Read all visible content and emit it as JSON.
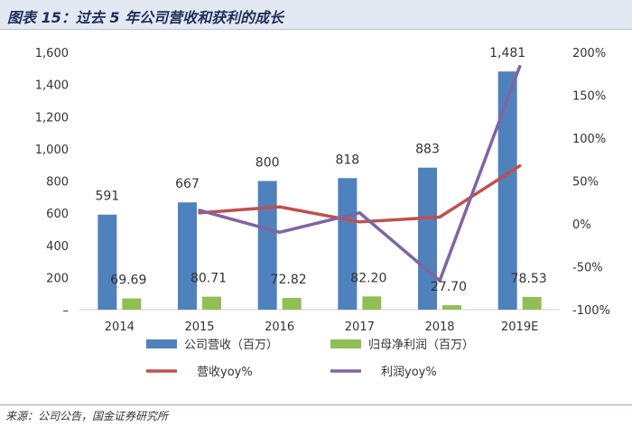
{
  "header": {
    "title": "图表 15：过去 5 年公司营收和获利的成长"
  },
  "source": {
    "text": "来源：公司公告，国金证券研究所"
  },
  "colors": {
    "revenue_bar": "#4f81bd",
    "profit_bar": "#8fbf55",
    "revenue_yoy_line": "#c0504d",
    "profit_yoy_line": "#8064a2",
    "header_bg": "#e3e9f3"
  },
  "chart_data": {
    "type": "bar",
    "title": "",
    "categories": [
      "2014",
      "2015",
      "2016",
      "2017",
      "2018",
      "2019E"
    ],
    "left_axis": {
      "ylim": [
        0,
        1600
      ],
      "ticks": [
        0,
        200,
        400,
        600,
        800,
        1000,
        1200,
        1400,
        1600
      ],
      "tick_labels": [
        "–",
        "200",
        "400",
        "600",
        "800",
        "1,000",
        "1,200",
        "1,400",
        "1,600"
      ]
    },
    "right_axis": {
      "ylim": [
        -100,
        200
      ],
      "ticks": [
        -100,
        -50,
        0,
        50,
        100,
        150,
        200
      ],
      "tick_labels": [
        "-100%",
        "-50%",
        "0%",
        "50%",
        "100%",
        "150%",
        "200%"
      ]
    },
    "series": [
      {
        "name": "公司营收（百万）",
        "type": "bar",
        "axis": "left",
        "values": [
          591,
          667,
          800,
          818,
          883,
          1481
        ],
        "labels": [
          "591",
          "667",
          "800",
          "818",
          "883",
          "1,481"
        ]
      },
      {
        "name": "归母净利润（百万）",
        "type": "bar",
        "axis": "left",
        "values": [
          69.69,
          80.71,
          72.82,
          82.2,
          27.7,
          78.53
        ],
        "labels": [
          "69.69",
          "80.71",
          "72.82",
          "82.20",
          "27.70",
          "78.53"
        ]
      },
      {
        "name": "营收yoy%",
        "type": "line",
        "axis": "right",
        "values": [
          null,
          12.9,
          19.9,
          2.3,
          7.9,
          67.7
        ]
      },
      {
        "name": "利润yoy%",
        "type": "line",
        "axis": "right",
        "values": [
          null,
          15.8,
          -9.8,
          12.9,
          -66.3,
          183.5
        ]
      }
    ],
    "legend": {
      "placement": "bottom",
      "items": [
        "公司营收（百万）",
        "归母净利润（百万）",
        "营收yoy%",
        "利润yoy%"
      ]
    },
    "grid": false
  }
}
